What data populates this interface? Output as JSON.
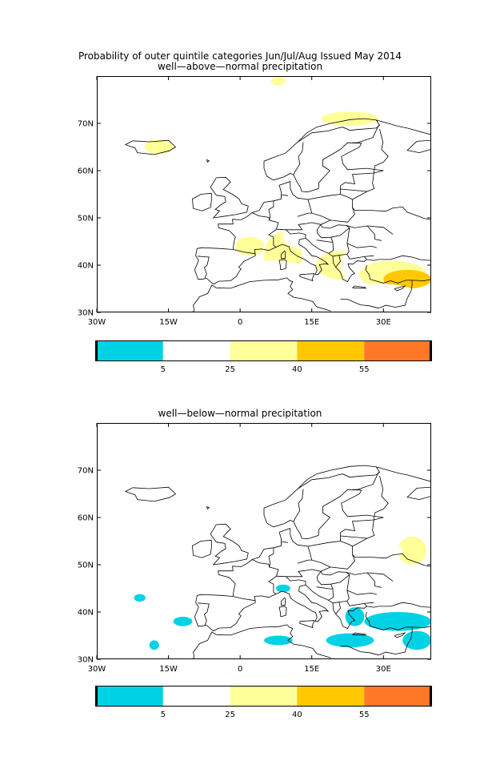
{
  "header": {
    "main_title": "Probability of outer quintile categories Jun/Jul/Aug Issued May 2014"
  },
  "colors": {
    "below_5": "#00d2e6",
    "5_25": "#ffffff",
    "25_40": "#ffff99",
    "40_55": "#ffc800",
    "above_55": "#ff7828",
    "coast": "#000000"
  },
  "axes": {
    "lon_ticks": [
      {
        "value": -30,
        "label": "30W"
      },
      {
        "value": -15,
        "label": "15W"
      },
      {
        "value": 0,
        "label": "0"
      },
      {
        "value": 15,
        "label": "15E"
      },
      {
        "value": 30,
        "label": "30E"
      }
    ],
    "lat_ticks": [
      {
        "value": 30,
        "label": "30N"
      },
      {
        "value": 40,
        "label": "40N"
      },
      {
        "value": 50,
        "label": "50N"
      },
      {
        "value": 60,
        "label": "60N"
      },
      {
        "value": 70,
        "label": "70N"
      }
    ],
    "lon_range": [
      -30,
      40
    ],
    "lat_range": [
      30,
      80
    ]
  },
  "colorbar": {
    "labels": [
      "5",
      "25",
      "40",
      "55"
    ],
    "colors": [
      "#00d2e6",
      "#ffffff",
      "#ffff99",
      "#ffc800",
      "#ff7828"
    ]
  },
  "panels": [
    {
      "title": "well—above—normal precipitation",
      "blobs": [
        {
          "lon": -25,
          "lat": 77,
          "rx": 10,
          "ry": 4,
          "level": 1
        },
        {
          "lon": -5,
          "lat": 76,
          "rx": 14,
          "ry": 4,
          "level": 1
        },
        {
          "lon": 22,
          "lat": 77,
          "rx": 15,
          "ry": 3,
          "level": 1
        },
        {
          "lon": -20,
          "lat": 71,
          "rx": 9,
          "ry": 4,
          "level": 1
        },
        {
          "lon": 5,
          "lat": 72,
          "rx": 10,
          "ry": 3,
          "level": 1
        },
        {
          "lon": 25,
          "lat": 70,
          "rx": 9,
          "ry": 3,
          "level": 1
        },
        {
          "lon": -17,
          "lat": 65,
          "rx": 3,
          "ry": 1.5,
          "level": 2
        },
        {
          "lon": 38,
          "lat": 64,
          "rx": 4,
          "ry": 5,
          "level": 1
        },
        {
          "lon": -2,
          "lat": 59,
          "rx": 3,
          "ry": 2,
          "level": 1
        },
        {
          "lon": -22,
          "lat": 48,
          "rx": 8,
          "ry": 3,
          "level": 1
        },
        {
          "lon": -14,
          "lat": 41,
          "rx": 8,
          "ry": 5,
          "level": 1
        },
        {
          "lon": -3,
          "lat": 49,
          "rx": 5,
          "ry": 4,
          "level": 1
        },
        {
          "lon": -4,
          "lat": 40,
          "rx": 6,
          "ry": 3,
          "level": 1
        },
        {
          "lon": 5,
          "lat": 46,
          "rx": 8,
          "ry": 5,
          "level": 1
        },
        {
          "lon": 2,
          "lat": 44,
          "rx": 3,
          "ry": 2,
          "level": 2
        },
        {
          "lon": 9,
          "lat": 42,
          "rx": 4,
          "ry": 5,
          "level": 2
        },
        {
          "lon": 6,
          "lat": 36,
          "rx": 12,
          "ry": 5,
          "level": 1
        },
        {
          "lon": 16,
          "lat": 46,
          "rx": 7,
          "ry": 3,
          "level": 1
        },
        {
          "lon": 21,
          "lat": 40,
          "rx": 5,
          "ry": 3,
          "level": 2
        },
        {
          "lon": 31,
          "lat": 40,
          "rx": 10,
          "ry": 6,
          "level": 1
        },
        {
          "lon": 32,
          "lat": 38,
          "rx": 7,
          "ry": 3,
          "level": 2
        },
        {
          "lon": 35,
          "lat": 37,
          "rx": 5,
          "ry": 2,
          "level": 3
        },
        {
          "lon": 30,
          "lat": 33,
          "rx": 8,
          "ry": 3,
          "level": 1
        },
        {
          "lon": 15,
          "lat": 32,
          "rx": 12,
          "ry": 2,
          "level": 1
        },
        {
          "lon": 36,
          "lat": 49,
          "rx": 5,
          "ry": 3,
          "level": 1
        },
        {
          "lon": 23,
          "lat": 71,
          "rx": 6,
          "ry": 1.5,
          "level": 2
        },
        {
          "lon": 8,
          "lat": 79,
          "rx": 1.5,
          "ry": 1,
          "level": 2
        }
      ]
    },
    {
      "title": "well—below—normal precipitation",
      "blobs": [
        {
          "lon": -22,
          "lat": 77,
          "rx": 6,
          "ry": 3,
          "level": 1
        },
        {
          "lon": -18,
          "lat": 71,
          "rx": 5,
          "ry": 3,
          "level": 1
        },
        {
          "lon": -27,
          "lat": 63,
          "rx": 4,
          "ry": 4,
          "level": 1
        },
        {
          "lon": 5,
          "lat": 72,
          "rx": 5,
          "ry": 2,
          "level": 1
        },
        {
          "lon": 0,
          "lat": 64,
          "rx": 12,
          "ry": 3,
          "level": 1
        },
        {
          "lon": 25,
          "lat": 62,
          "rx": 7,
          "ry": 4,
          "level": 1
        },
        {
          "lon": 33,
          "lat": 55,
          "rx": 7,
          "ry": 4,
          "level": 1
        },
        {
          "lon": 36,
          "lat": 53,
          "rx": 3,
          "ry": 3,
          "level": 2
        },
        {
          "lon": 22,
          "lat": 53,
          "rx": 12,
          "ry": 3,
          "level": 1
        },
        {
          "lon": -28,
          "lat": 41,
          "rx": 2,
          "ry": 2,
          "level": 1
        },
        {
          "lon": 31,
          "lat": 41,
          "rx": 5,
          "ry": 2,
          "level": 1
        },
        {
          "lon": -21,
          "lat": 43,
          "rx": 1.2,
          "ry": 0.8,
          "level": 0
        },
        {
          "lon": -12,
          "lat": 38,
          "rx": 2,
          "ry": 1,
          "level": 0
        },
        {
          "lon": -18,
          "lat": 33,
          "rx": 1,
          "ry": 1,
          "level": 0
        },
        {
          "lon": 9,
          "lat": 45,
          "rx": 1.5,
          "ry": 0.8,
          "level": 0
        },
        {
          "lon": 24,
          "lat": 39,
          "rx": 2,
          "ry": 2,
          "level": 0
        },
        {
          "lon": 33,
          "lat": 38,
          "rx": 7,
          "ry": 2,
          "level": 0
        },
        {
          "lon": 23,
          "lat": 34,
          "rx": 5,
          "ry": 1.5,
          "level": 0
        },
        {
          "lon": 37,
          "lat": 34,
          "rx": 3,
          "ry": 2,
          "level": 0
        },
        {
          "lon": 8,
          "lat": 34,
          "rx": 3,
          "ry": 1,
          "level": 0
        }
      ]
    }
  ]
}
